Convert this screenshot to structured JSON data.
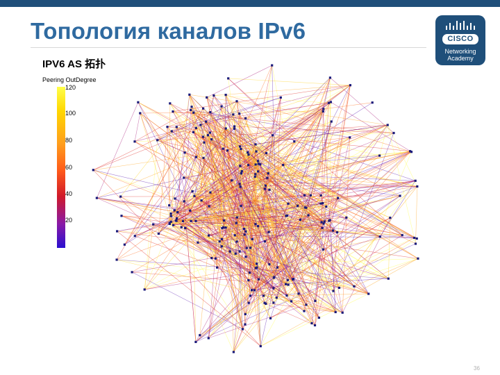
{
  "slide": {
    "title": "Топология каналов IPv6",
    "page_number": "36"
  },
  "logo": {
    "wordmark": "CISCO",
    "line1": "Networking",
    "line2": "Academy",
    "color": "#1f4f7a"
  },
  "figure": {
    "title": "IPV6 AS 拓扑",
    "colorbar_label": "Peering OutDegree",
    "colorbar_ticks": [
      "120",
      "100",
      "80",
      "60",
      "40",
      "20"
    ],
    "colors": {
      "high": "#ffff4a",
      "mid": "#ff6a1a",
      "low": "#2a10d0",
      "node": "#1a1a7a"
    }
  }
}
